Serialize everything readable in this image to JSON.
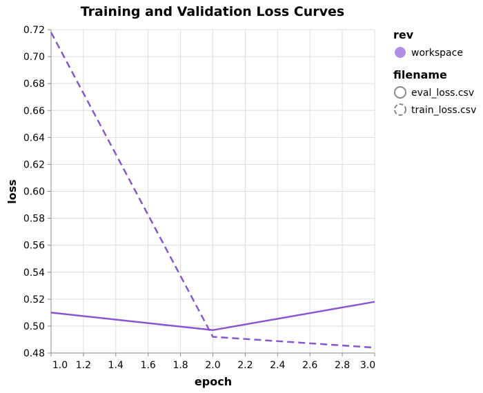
{
  "chart_data": {
    "type": "line",
    "title": "Training and Validation Loss Curves",
    "xlabel": "epoch",
    "ylabel": "loss",
    "xlim": [
      1.0,
      3.0
    ],
    "ylim": [
      0.48,
      0.72
    ],
    "x_ticks": [
      1.0,
      1.2,
      1.4,
      1.6,
      1.8,
      2.0,
      2.2,
      2.4,
      2.6,
      2.8,
      3.0
    ],
    "x_tick_labels": [
      "1.0",
      "1.2",
      "1.4",
      "1.6",
      "1.8",
      "2.0",
      "2.2",
      "2.4",
      "2.6",
      "2.8",
      "3.0"
    ],
    "y_ticks": [
      0.48,
      0.5,
      0.52,
      0.54,
      0.56,
      0.58,
      0.6,
      0.62,
      0.64,
      0.66,
      0.68,
      0.7,
      0.72
    ],
    "y_tick_labels": [
      "0.48",
      "0.50",
      "0.52",
      "0.54",
      "0.56",
      "0.58",
      "0.60",
      "0.62",
      "0.64",
      "0.66",
      "0.68",
      "0.70",
      "0.72"
    ],
    "grid": true,
    "legend_placement": "right",
    "series": [
      {
        "rev": "workspace",
        "filename": "eval_loss.csv",
        "dash": "solid",
        "color": "#8855d0",
        "points": [
          {
            "x": 1.0,
            "y": 0.51
          },
          {
            "x": 2.0,
            "y": 0.497
          },
          {
            "x": 3.0,
            "y": 0.518
          }
        ]
      },
      {
        "rev": "workspace",
        "filename": "train_loss.csv",
        "dash": "dashed",
        "color": "#8855d0",
        "points": [
          {
            "x": 1.0,
            "y": 0.718
          },
          {
            "x": 2.0,
            "y": 0.492
          },
          {
            "x": 3.0,
            "y": 0.484
          }
        ]
      }
    ],
    "legend": {
      "rev_title": "rev",
      "rev_items": [
        {
          "label": "workspace",
          "color": "#b08ee6"
        }
      ],
      "filename_title": "filename",
      "filename_items": [
        {
          "label": "eval_loss.csv",
          "symbol": "solid-circle-outline"
        },
        {
          "label": "train_loss.csv",
          "symbol": "dashed-circle-outline"
        }
      ]
    }
  }
}
